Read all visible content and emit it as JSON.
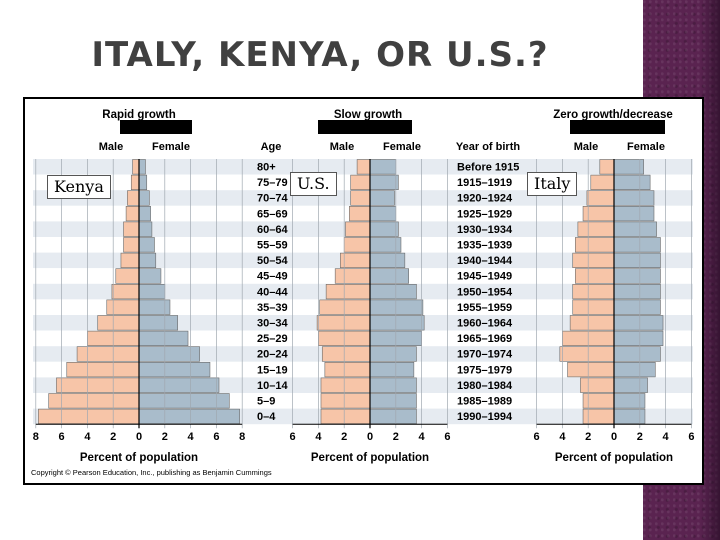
{
  "slide": {
    "title": "ITALY, KENYA, OR U.S.?"
  },
  "labels": {
    "kenya": "Kenya",
    "us": "U.S.",
    "italy": "Italy"
  },
  "colors": {
    "male": "#f7c5a8",
    "female": "#a9bccb",
    "stripe_a": "#e6ebf1",
    "stripe_b": "#ffffff",
    "grid": "#a0a8b0",
    "frame": "#000000",
    "deco": "#5a2350"
  },
  "chart_data": [
    {
      "type": "population-pyramid",
      "title": "Rapid growth",
      "series": [
        {
          "name": "Male",
          "values": [
            0.5,
            0.6,
            0.9,
            1.0,
            1.2,
            1.2,
            1.4,
            1.8,
            2.1,
            2.5,
            3.2,
            4.0,
            4.8,
            5.6,
            6.4,
            7.0,
            7.8
          ]
        },
        {
          "name": "Female",
          "values": [
            0.5,
            0.6,
            0.8,
            0.9,
            1.0,
            1.2,
            1.3,
            1.7,
            2.0,
            2.4,
            3.0,
            3.8,
            4.7,
            5.5,
            6.2,
            7.0,
            7.8
          ]
        }
      ],
      "xlabel": "Percent of population",
      "xticks": [
        "8",
        "6",
        "4",
        "2",
        "0",
        "2",
        "4",
        "6",
        "8"
      ],
      "xlim": [
        -8,
        8
      ]
    },
    {
      "type": "population-pyramid",
      "title": "Slow growth",
      "series": [
        {
          "name": "Male",
          "values": [
            1.0,
            1.5,
            1.5,
            1.6,
            1.9,
            2.0,
            2.3,
            2.7,
            3.4,
            3.9,
            4.1,
            4.0,
            3.7,
            3.5,
            3.8,
            3.8,
            3.8
          ]
        },
        {
          "name": "Female",
          "values": [
            2.0,
            2.2,
            1.9,
            2.0,
            2.2,
            2.4,
            2.7,
            3.0,
            3.6,
            4.1,
            4.2,
            4.0,
            3.6,
            3.4,
            3.6,
            3.6,
            3.6
          ]
        }
      ],
      "xlabel": "Percent of population",
      "xticks": [
        "6",
        "4",
        "2",
        "0",
        "2",
        "4",
        "6"
      ],
      "xlim": [
        -6,
        6
      ]
    },
    {
      "type": "population-pyramid",
      "title": "Zero growth/decrease",
      "series": [
        {
          "name": "Male",
          "values": [
            1.1,
            1.8,
            2.1,
            2.4,
            2.8,
            3.0,
            3.2,
            3.0,
            3.2,
            3.2,
            3.4,
            4.0,
            4.2,
            3.6,
            2.6,
            2.4,
            2.4
          ]
        },
        {
          "name": "Female",
          "values": [
            2.3,
            2.8,
            3.1,
            3.1,
            3.3,
            3.6,
            3.6,
            3.6,
            3.6,
            3.6,
            3.8,
            3.8,
            3.6,
            3.2,
            2.6,
            2.4,
            2.4
          ]
        }
      ],
      "xlabel": "Percent of population",
      "xticks": [
        "6",
        "4",
        "2",
        "0",
        "2",
        "4",
        "6"
      ],
      "xlim": [
        -6,
        6
      ]
    }
  ],
  "shared": {
    "male_label": "Male",
    "female_label": "Female",
    "age_header": "Age",
    "year_header": "Year of birth",
    "age_groups": [
      "80+",
      "75–79",
      "70–74",
      "65–69",
      "60–64",
      "55–59",
      "50–54",
      "45–49",
      "40–44",
      "35–39",
      "30–34",
      "25–29",
      "20–24",
      "15–19",
      "10–14",
      "5–9",
      "0–4"
    ],
    "birth_years": [
      "Before 1915",
      "1915–1919",
      "1920–1924",
      "1925–1929",
      "1930–1934",
      "1935–1939",
      "1940–1944",
      "1945–1949",
      "1950–1954",
      "1955–1959",
      "1960–1964",
      "1965–1969",
      "1970–1974",
      "1975–1979",
      "1980–1984",
      "1985–1989",
      "1990–1994"
    ],
    "copyright": "Copyright © Pearson Education, Inc., publishing as Benjamin Cummings"
  }
}
